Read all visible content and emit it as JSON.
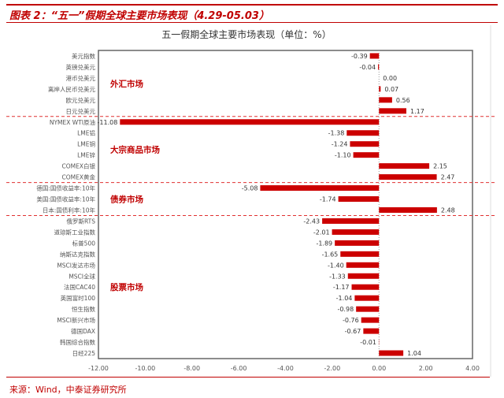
{
  "figure_title": "图表 2：“五一”假期全球主要市场表现（4.29-05.03）",
  "source": "来源：Wind，中泰证券研究所",
  "colors": {
    "bar": "#cc0000",
    "accent": "#c00000",
    "divider": "#e03030"
  },
  "chart_data": {
    "type": "bar",
    "orientation": "horizontal",
    "title": "五一假期全球主要市场表现（单位：%）",
    "xlim": [
      -12,
      4
    ],
    "xticks": [
      "-12.00",
      "-10.00",
      "-8.00",
      "-6.00",
      "-4.00",
      "-2.00",
      "0.00",
      "2.00",
      "4.00"
    ],
    "grid": false,
    "categories": [
      "美元指数",
      "英镑兑美元",
      "港币兑美元",
      "离岸人民币兑美元",
      "欧元兑美元",
      "日元兑美元",
      "NYMEX WTI原油",
      "LME铝",
      "LME铜",
      "LME锌",
      "COMEX白银",
      "COMEX黄金",
      "德国:国债收益率:10年",
      "美国:国债收益率:10年",
      "日本:国债利率:10年",
      "俄罗斯RTS",
      "道琼斯工业指数",
      "标普500",
      "纳斯达克指数",
      "MSCI发达市场",
      "MSCI全球",
      "法国CAC40",
      "英国富时100",
      "恒生指数",
      "MSCI新兴市场",
      "德国DAX",
      "韩国综合指数",
      "日经225"
    ],
    "values": [
      -0.39,
      -0.04,
      0.0,
      0.07,
      0.56,
      1.17,
      -11.08,
      -1.38,
      -1.24,
      -1.1,
      2.15,
      2.47,
      -5.08,
      -1.74,
      2.48,
      -2.43,
      -2.01,
      -1.89,
      -1.65,
      -1.4,
      -1.33,
      -1.17,
      -1.04,
      -0.98,
      -0.76,
      -0.67,
      -0.01,
      1.04
    ],
    "labels": [
      "-0.39",
      "-0.04",
      "0.00",
      "0.07",
      "0.56",
      "1.17",
      "-11.08",
      "-1.38",
      "-1.24",
      "-1.10",
      "2.15",
      "2.47",
      "-5.08",
      "-1.74",
      "2.48",
      "-2.43",
      "-2.01",
      "-1.89",
      "-1.65",
      "-1.40",
      "-1.33",
      "-1.17",
      "-1.04",
      "-0.98",
      "-0.76",
      "-0.67",
      "-0.01",
      "1.04"
    ],
    "groups": [
      {
        "name": "外汇市场",
        "start": 0,
        "end": 5
      },
      {
        "name": "大宗商品市场",
        "start": 6,
        "end": 11
      },
      {
        "name": "债券市场",
        "start": 12,
        "end": 14
      },
      {
        "name": "股票市场",
        "start": 15,
        "end": 27
      }
    ]
  }
}
